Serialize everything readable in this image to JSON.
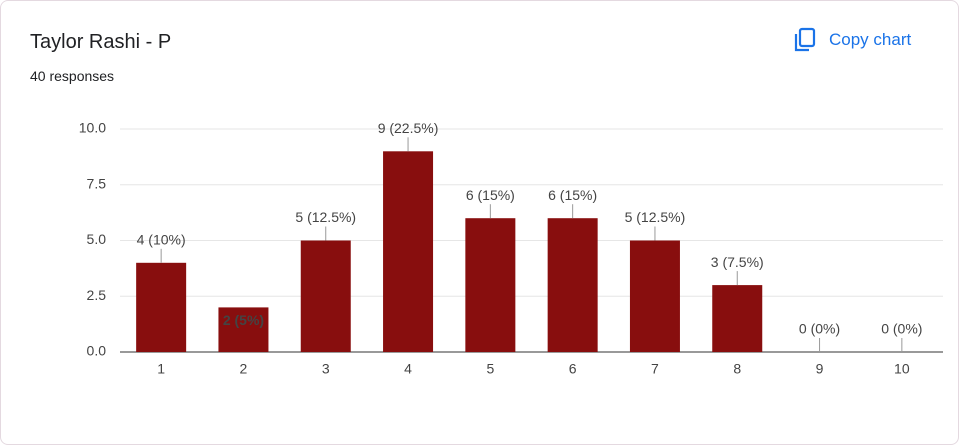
{
  "header": {
    "title": "Taylor Rashi - P",
    "subtitle": "40 responses",
    "button": "Copy chart"
  },
  "chart_data": {
    "type": "bar",
    "categories": [
      "1",
      "2",
      "3",
      "4",
      "5",
      "6",
      "7",
      "8",
      "9",
      "10"
    ],
    "values": [
      4,
      2,
      5,
      9,
      6,
      6,
      5,
      3,
      0,
      0
    ],
    "value_labels": [
      "4 (10%)",
      "2 (5%)",
      "5 (12.5%)",
      "9 (22.5%)",
      "6 (15%)",
      "6 (15%)",
      "5 (12.5%)",
      "3 (7.5%)",
      "0 (0%)",
      "0 (0%)"
    ],
    "color": "#880e0e",
    "ylim": [
      0,
      10
    ],
    "yticks": [
      {
        "value": 0,
        "label": "0.0"
      },
      2.5,
      {
        "value": 5,
        "label": "5.0"
      },
      7.5,
      {
        "value": 10,
        "label": "10.0"
      }
    ],
    "grid": true
  }
}
